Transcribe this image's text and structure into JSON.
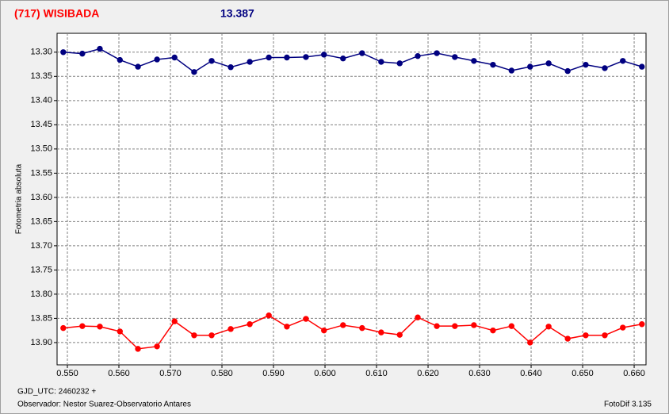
{
  "chart_data": {
    "type": "line",
    "title": "(717) WISIBADA",
    "subtitle": "13.387",
    "ylabel": "Fotometria absoluta",
    "xlabel": "GJD_UTC: 2460232 +",
    "annotations": [
      "Observador: Nestor Suarez-Observatorio Antares",
      "FotoDif 3.135"
    ],
    "x": [
      0.5492,
      0.5529,
      0.5563,
      0.5602,
      0.5637,
      0.5674,
      0.5708,
      0.5746,
      0.578,
      0.5817,
      0.5854,
      0.5891,
      0.5926,
      0.5963,
      0.5998,
      0.6035,
      0.6072,
      0.6109,
      0.6145,
      0.618,
      0.6217,
      0.6252,
      0.6289,
      0.6326,
      0.6362,
      0.6398,
      0.6434,
      0.6471,
      0.6506,
      0.6543,
      0.6578,
      0.6615
    ],
    "series": [
      {
        "color": "#000080",
        "values": [
          13.3,
          13.303,
          13.293,
          13.316,
          13.33,
          13.315,
          13.311,
          13.341,
          13.318,
          13.331,
          13.32,
          13.311,
          13.311,
          13.31,
          13.305,
          13.313,
          13.302,
          13.32,
          13.323,
          13.308,
          13.302,
          13.31,
          13.318,
          13.326,
          13.338,
          13.33,
          13.323,
          13.339,
          13.326,
          13.333,
          13.318,
          13.33
        ]
      },
      {
        "color": "#ff0000",
        "values": [
          13.87,
          13.866,
          13.867,
          13.877,
          13.913,
          13.908,
          13.856,
          13.885,
          13.885,
          13.872,
          13.862,
          13.844,
          13.867,
          13.851,
          13.875,
          13.864,
          13.87,
          13.879,
          13.884,
          13.848,
          13.866,
          13.866,
          13.864,
          13.875,
          13.866,
          13.9,
          13.867,
          13.892,
          13.885,
          13.885,
          13.869,
          13.862
        ]
      }
    ],
    "xlim": [
      0.548,
      0.6623
    ],
    "ylim": [
      13.261,
      13.946
    ],
    "y_inverted": true,
    "grid": true,
    "xticks": [
      {
        "value": 0.55,
        "label": "0.550"
      },
      {
        "value": 0.56,
        "label": "0.560"
      },
      {
        "value": 0.57,
        "label": "0.570"
      },
      {
        "value": 0.58,
        "label": "0.580"
      },
      {
        "value": 0.59,
        "label": "0.590"
      },
      {
        "value": 0.6,
        "label": "0.600"
      },
      {
        "value": 0.61,
        "label": "0.610"
      },
      {
        "value": 0.62,
        "label": "0.620"
      },
      {
        "value": 0.63,
        "label": "0.630"
      },
      {
        "value": 0.64,
        "label": "0.640"
      },
      {
        "value": 0.65,
        "label": "0.650"
      },
      {
        "value": 0.66,
        "label": "0.660"
      }
    ],
    "yticks": [
      {
        "value": 13.3,
        "label": "13.30"
      },
      {
        "value": 13.35,
        "label": "13.35"
      },
      {
        "value": 13.4,
        "label": "13.40"
      },
      {
        "value": 13.45,
        "label": "13.45"
      },
      {
        "value": 13.5,
        "label": "13.50"
      },
      {
        "value": 13.55,
        "label": "13.55"
      },
      {
        "value": 13.6,
        "label": "13.60"
      },
      {
        "value": 13.65,
        "label": "13.65"
      },
      {
        "value": 13.7,
        "label": "13.70"
      },
      {
        "value": 13.75,
        "label": "13.75"
      },
      {
        "value": 13.8,
        "label": "13.80"
      },
      {
        "value": 13.85,
        "label": "13.85"
      },
      {
        "value": 13.9,
        "label": "13.90"
      }
    ]
  }
}
